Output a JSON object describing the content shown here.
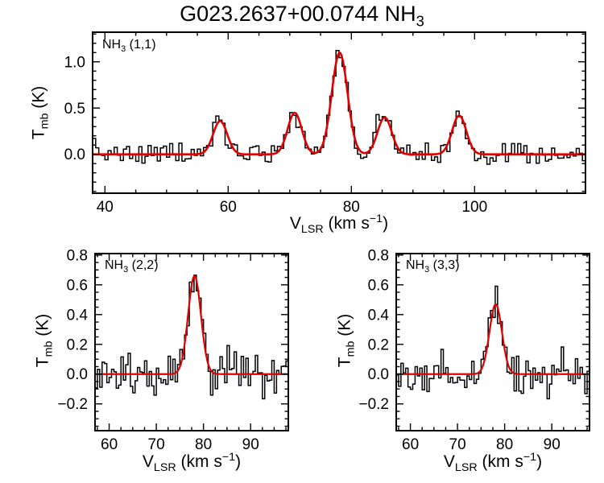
{
  "title": {
    "main": "G023.2637+00.0744 NH",
    "sub": "3",
    "text": "G023.2637+00.0744 NH3"
  },
  "colors": {
    "background": "#ffffff",
    "axes": "#000000",
    "spectrum": "#000000",
    "fit": "#e00000"
  },
  "axis_labels": {
    "x": {
      "prefix": "V",
      "sub": "LSR",
      "mid": " (km s",
      "sup": "−1",
      "close": ")",
      "text": "V_LSR (km s^-1)"
    },
    "y": {
      "prefix": "T",
      "sub": "mb",
      "close": " (K)",
      "text": "T_mb (K)"
    }
  },
  "chart_data": [
    {
      "id": "nh3-1-1",
      "type": "line",
      "label": {
        "main": "NH",
        "sub": "3",
        "rest": " (1,1)",
        "text": "NH3 (1,1)"
      },
      "xlabel": "V_LSR (km s^-1)",
      "ylabel": "T_mb (K)",
      "xlim": [
        38,
        118
      ],
      "ylim": [
        -0.42,
        1.32
      ],
      "xticks": [
        40,
        60,
        80,
        100
      ],
      "xtick_labels": [
        "40",
        "60",
        "80",
        "100"
      ],
      "x_minor_step": 5,
      "yticks": [
        0.0,
        0.5,
        1.0
      ],
      "ytick_labels": [
        "0.0",
        "0.5",
        "1.0"
      ],
      "y_minor_step": 0.1,
      "grid": false,
      "legend": false,
      "channel_width": 0.5,
      "noise_sigma": 0.062,
      "noise_seed": 7,
      "fit_components": [
        {
          "center": 58.7,
          "amplitude": 0.36,
          "fwhm": 2.7
        },
        {
          "center": 70.8,
          "amplitude": 0.45,
          "fwhm": 2.7
        },
        {
          "center": 78.1,
          "amplitude": 1.1,
          "fwhm": 3.0
        },
        {
          "center": 85.4,
          "amplitude": 0.4,
          "fwhm": 2.7
        },
        {
          "center": 97.5,
          "amplitude": 0.42,
          "fwhm": 2.7
        }
      ]
    },
    {
      "id": "nh3-2-2",
      "type": "line",
      "label": {
        "main": "NH",
        "sub": "3",
        "rest": " (2,2)",
        "text": "NH3 (2,2)"
      },
      "xlabel": "V_LSR (km s^-1)",
      "ylabel": "T_mb (K)",
      "xlim": [
        57,
        98
      ],
      "ylim": [
        -0.38,
        0.81
      ],
      "xticks": [
        60,
        70,
        80,
        90
      ],
      "xtick_labels": [
        "60",
        "70",
        "80",
        "90"
      ],
      "x_minor_step": 2.5,
      "yticks": [
        -0.2,
        0.0,
        0.2,
        0.4,
        0.6,
        0.8
      ],
      "ytick_labels": [
        "−0.2",
        "0.0",
        "0.2",
        "0.4",
        "0.6",
        "0.8"
      ],
      "y_minor_step": 0.05,
      "grid": false,
      "legend": false,
      "channel_width": 0.5,
      "noise_sigma": 0.075,
      "noise_seed": 21,
      "fit_components": [
        {
          "center": 78.1,
          "amplitude": 0.66,
          "fwhm": 3.2
        }
      ]
    },
    {
      "id": "nh3-3-3",
      "type": "line",
      "label": {
        "main": "NH",
        "sub": "3",
        "rest": " (3,3)",
        "text": "NH3 (3,3)"
      },
      "xlabel": "V_LSR (km s^-1)",
      "ylabel": "T_mb (K)",
      "xlim": [
        57,
        98
      ],
      "ylim": [
        -0.38,
        0.81
      ],
      "xticks": [
        60,
        70,
        80,
        90
      ],
      "xtick_labels": [
        "60",
        "70",
        "80",
        "90"
      ],
      "x_minor_step": 2.5,
      "yticks": [
        -0.2,
        0.0,
        0.2,
        0.4,
        0.6,
        0.8
      ],
      "ytick_labels": [
        "−0.2",
        "0.0",
        "0.2",
        "0.4",
        "0.6",
        "0.8"
      ],
      "y_minor_step": 0.05,
      "grid": false,
      "legend": false,
      "channel_width": 0.5,
      "noise_sigma": 0.075,
      "noise_seed": 33,
      "fit_components": [
        {
          "center": 78.1,
          "amplitude": 0.47,
          "fwhm": 3.1
        }
      ]
    }
  ]
}
